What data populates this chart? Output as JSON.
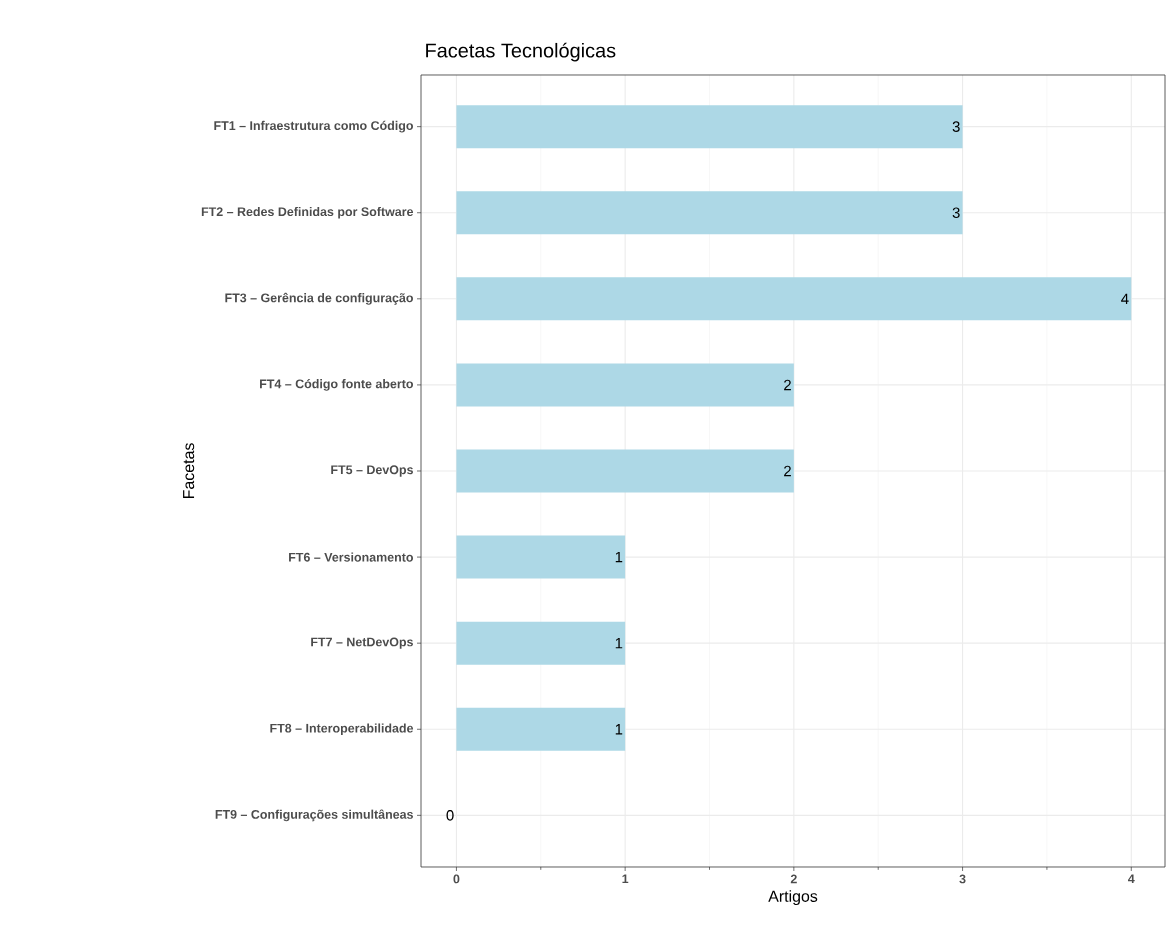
{
  "chart_data": {
    "type": "bar",
    "orientation": "horizontal",
    "title": "Facetas Tecnológicas",
    "xlabel": "Artigos",
    "ylabel": "Facetas",
    "categories": [
      "FT1 – Infraestrutura como Código",
      "FT2 – Redes Definidas por Software",
      "FT3 – Gerência de configuração",
      "FT4 – Código fonte aberto",
      "FT5 – DevOps",
      "FT6 – Versionamento",
      "FT7 – NetDevOps",
      "FT8 – Interoperabilidade",
      "FT9 – Configurações simultâneas"
    ],
    "values": [
      3,
      3,
      4,
      2,
      2,
      1,
      1,
      1,
      0
    ],
    "color": "#add8e6",
    "xlim": [
      -0.21,
      4.2
    ],
    "xticks": [
      0,
      1,
      2,
      3,
      4
    ],
    "grid": true,
    "data_labels": true
  }
}
